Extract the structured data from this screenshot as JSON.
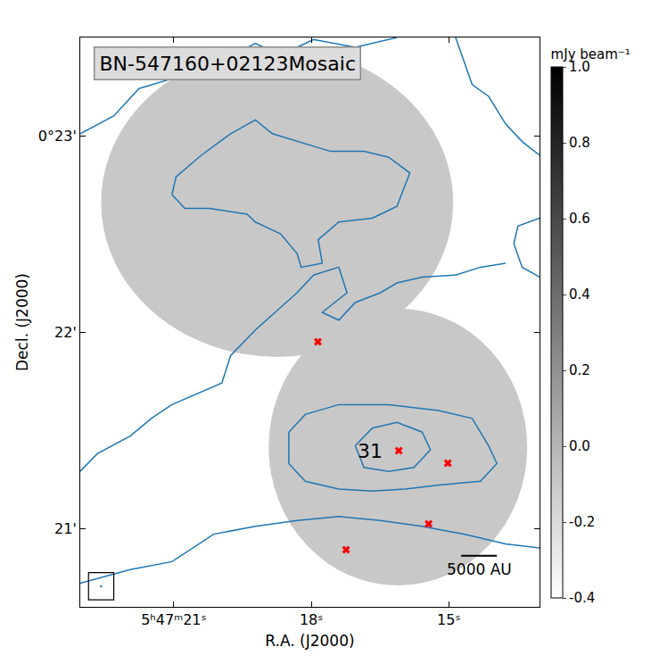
{
  "chart_data": {
    "type": "image",
    "title": "BN-547160+02123Mosaic",
    "x_label": "R.A. (J2000)",
    "y_label": "Decl. (J2000)",
    "xlim": [
      23.04,
      13.02
    ],
    "xticks": [
      {
        "value": 21,
        "label": "5ʰ47ᵐ21ˢ"
      },
      {
        "value": 18,
        "label": "18ˢ"
      },
      {
        "value": 15,
        "label": "15ˢ"
      }
    ],
    "ylim": [
      20.6,
      23.5
    ],
    "yticks": [
      {
        "value": 21,
        "label": "21'"
      },
      {
        "value": 22,
        "label": "22'"
      },
      {
        "value": 23,
        "label": "0°23'"
      }
    ],
    "colorbar": {
      "label": "mJy beam⁻¹",
      "range": [
        -0.4,
        1.0
      ],
      "ticks": [
        {
          "value": -0.4,
          "label": "-0.4"
        },
        -0.2,
        {
          "value": 0,
          "label": "0.0"
        },
        0.2,
        0.4,
        0.6,
        0.8,
        {
          "value": 1,
          "label": "1.0"
        }
      ]
    },
    "fields": [
      {
        "ra": 18.745,
        "dec": 22.659,
        "ra_halfwidth": 3.84,
        "dec_halfwidth": 0.786,
        "level": -0.1
      },
      {
        "ra": 16.109,
        "dec": 21.414,
        "ra_halfwidth": 2.82,
        "dec_halfwidth": 0.705,
        "level": -0.1
      }
    ],
    "contours": {
      "color": "#1f77b4",
      "lines": [
        {
          "x": [
            21.04,
            20.76,
            20.22,
            19.4,
            19.22,
            18.67,
            18.31,
            18.22,
            17.76,
            17.85,
            17.4,
            16.67,
            16.13,
            15.85,
            16.31,
            16.85,
            17.58,
            18.31,
            18.85,
            19.22,
            19.76,
            20.4,
            20.95,
            21.04
          ],
          "y": [
            22.7,
            22.63,
            22.63,
            22.6,
            22.56,
            22.5,
            22.4,
            22.33,
            22.35,
            22.47,
            22.56,
            22.58,
            22.64,
            22.81,
            22.89,
            22.92,
            22.92,
            22.97,
            23.01,
            23.08,
            23.01,
            22.9,
            22.79,
            22.7
          ]
        },
        {
          "x": [
            23.04,
            22.31,
            21.76,
            21.04,
            20.67,
            19.95,
            19.22,
            18.67,
            17.95,
            17.04,
            16.13
          ],
          "y": [
            23.01,
            23.1,
            23.24,
            23.29,
            23.41,
            23.38,
            23.47,
            23.41,
            23.49,
            23.45,
            23.5
          ]
        },
        {
          "x": [
            23.04,
            22.67,
            21.95,
            21.49,
            21.04,
            19.95,
            19.76,
            19.22,
            18.31,
            17.95,
            17.4,
            17.22,
            17.76,
            17.4,
            17.04,
            16.49,
            16.13,
            15.58,
            14.85,
            14.31,
            13.76
          ],
          "y": [
            21.29,
            21.38,
            21.47,
            21.56,
            21.63,
            21.74,
            21.88,
            22.01,
            22.2,
            22.29,
            22.33,
            22.2,
            22.1,
            22.06,
            22.15,
            22.2,
            22.25,
            22.28,
            22.29,
            22.33,
            22.35
          ]
        },
        {
          "x": [
            14.85,
            14.49,
            14.13,
            13.76,
            13.4,
            13.02
          ],
          "y": [
            23.5,
            23.26,
            23.2,
            23.06,
            22.97,
            22.9
          ]
        },
        {
          "x": [
            13.02,
            13.49,
            13.58,
            13.4,
            13.02
          ],
          "y": [
            22.58,
            22.54,
            22.45,
            22.33,
            22.28
          ]
        },
        {
          "x": [
            18.49,
            18.13,
            17.4,
            16.31,
            15.22,
            14.49,
            14.13,
            13.95,
            14.31,
            15.22,
            15.95,
            16.67,
            17.4,
            18.13,
            18.49,
            18.49
          ],
          "y": [
            21.49,
            21.58,
            21.63,
            21.63,
            21.6,
            21.56,
            21.42,
            21.33,
            21.24,
            21.22,
            21.2,
            21.19,
            21.2,
            21.24,
            21.33,
            21.49
          ]
        },
        {
          "x": [
            17.04,
            16.67,
            16.13,
            15.58,
            15.4,
            15.76,
            16.31,
            16.85,
            17.04
          ],
          "y": [
            21.42,
            21.51,
            21.54,
            21.49,
            21.4,
            21.31,
            21.29,
            21.31,
            21.42
          ]
        },
        {
          "x": [
            23.04,
            21.95,
            21.04,
            20.13,
            19.22,
            18.31,
            17.4,
            16.49,
            15.58,
            14.67,
            13.76,
            13.02
          ],
          "y": [
            20.72,
            20.79,
            20.83,
            20.97,
            21.01,
            21.04,
            21.06,
            21.04,
            21.01,
            20.97,
            20.92,
            20.9
          ]
        }
      ]
    },
    "sources": {
      "color": "red",
      "marker": "x",
      "x": [
        17.855,
        16.09,
        15.02,
        15.44,
        17.24
      ],
      "y": [
        21.95,
        21.395,
        21.332,
        21.023,
        20.891
      ]
    },
    "annotations": [
      {
        "text": "31",
        "x": 16.71,
        "y": 21.395
      }
    ],
    "scale_bar": {
      "label": "5000 AU",
      "ra_start": 14.73,
      "ra_end": 13.95,
      "dec": 20.86
    }
  }
}
